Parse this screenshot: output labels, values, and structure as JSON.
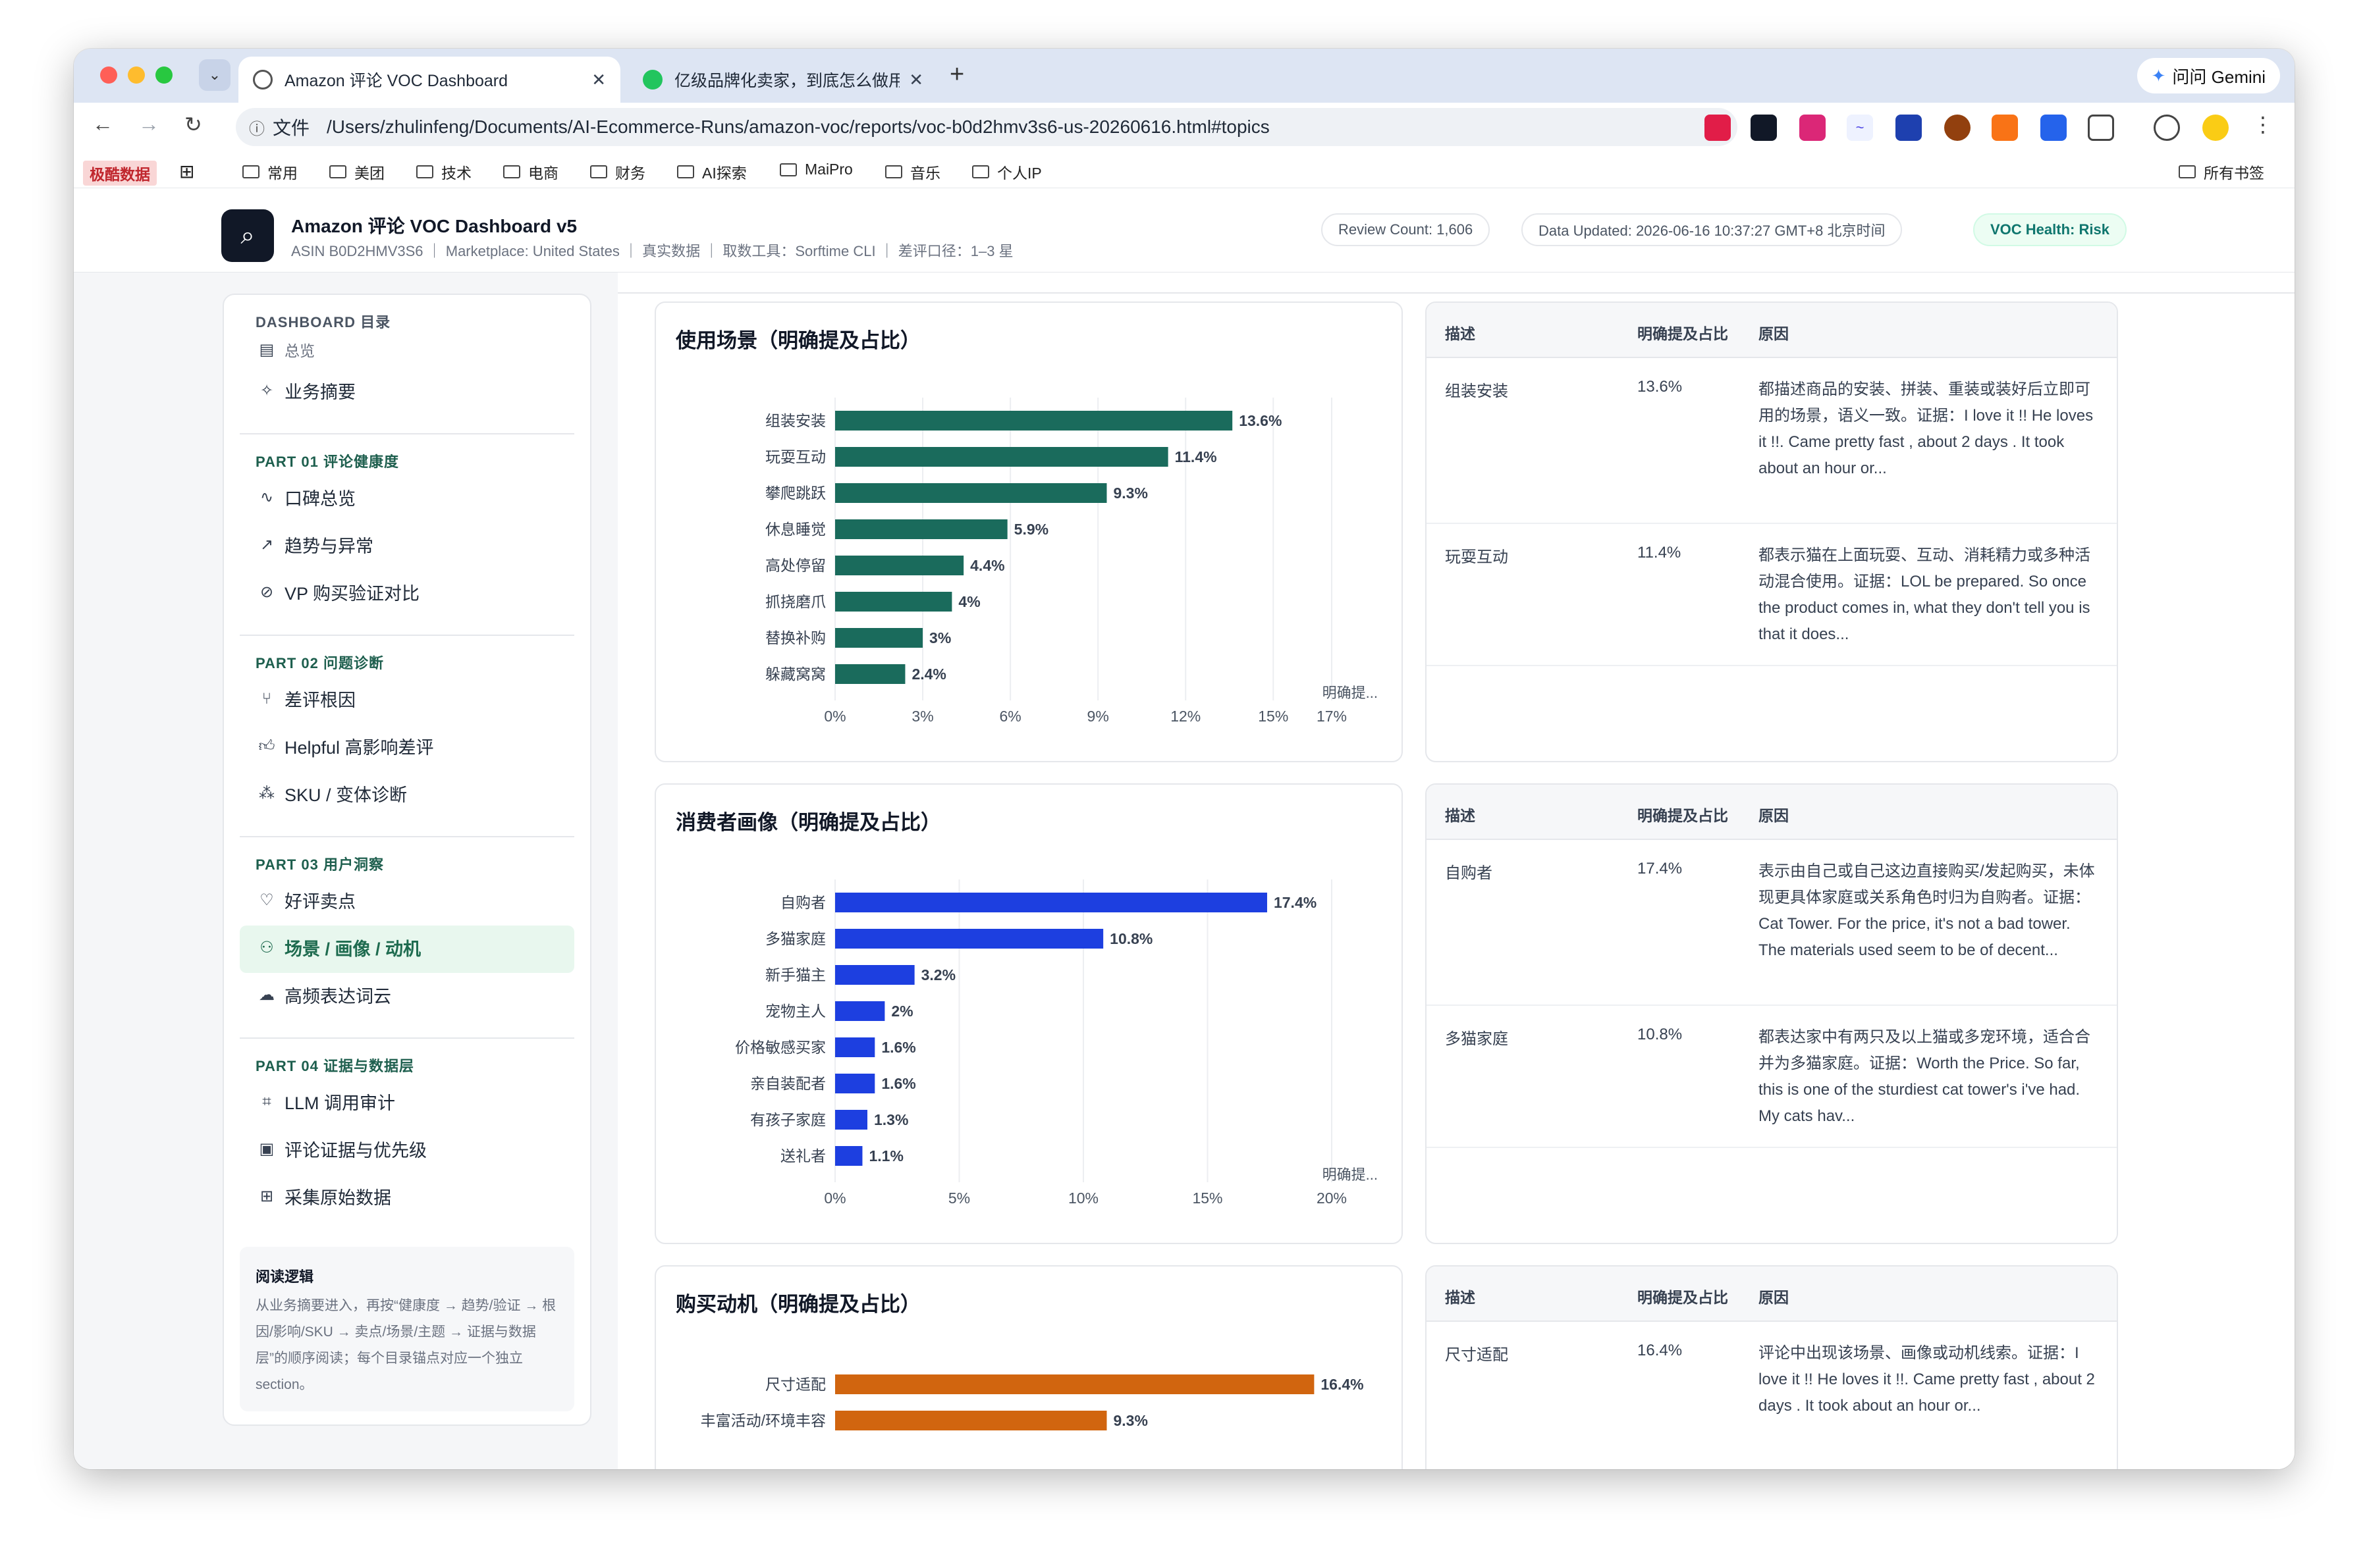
{
  "browser": {
    "tabs": [
      {
        "title": "Amazon 评论 VOC Dashboard",
        "active": true
      },
      {
        "title": "亿级品牌化卖家，到底怎么做用",
        "active": false
      }
    ],
    "gemini_label": "问问 Gemini",
    "url_label": "文件",
    "url": "/Users/zhulinfeng/Documents/AI-Ecommerce-Runs/amazon-voc/reports/voc-b0d2hmv3s6-us-20260616.html#topics",
    "bookmarks": [
      "极酷数据",
      "常用",
      "美团",
      "技术",
      "电商",
      "财务",
      "AI探索",
      "MaiPro",
      "音乐",
      "个人IP"
    ],
    "all_bookmarks": "所有书签"
  },
  "header": {
    "title": "Amazon 评论 VOC Dashboard v5",
    "subtitle": "ASIN B0D2HMV3S6 ｜ Marketplace: United States ｜ 真实数据 ｜ 取数工具：Sorftime CLI ｜ 差评口径：1–3 星",
    "review_count": "Review Count: 1,606",
    "data_updated": "Data Updated: 2026-06-16 10:37:27 GMT+8 北京时间",
    "health": "VOC Health: Risk"
  },
  "sidebar": {
    "top_title": "DASHBOARD 目录",
    "overview": "总览",
    "summary": "业务摘要",
    "parts": [
      {
        "title": "PART 01 评论健康度",
        "items": [
          "口碑总览",
          "趋势与异常",
          "VP 购买验证对比"
        ]
      },
      {
        "title": "PART 02 问题诊断",
        "items": [
          "差评根因",
          "Helpful 高影响差评",
          "SKU / 变体诊断"
        ]
      },
      {
        "title": "PART 03 用户洞察",
        "items": [
          "好评卖点",
          "场景 / 画像 / 动机",
          "高频表达词云"
        ]
      },
      {
        "title": "PART 04 证据与数据层",
        "items": [
          "LLM 调用审计",
          "评论证据与优先级",
          "采集原始数据"
        ]
      }
    ],
    "active_item": "场景 / 画像 / 动机",
    "note_title": "阅读逻辑",
    "note_body": "从业务摘要进入，再按“健康度 → 趋势/验证 → 根因/影响/SKU → 卖点/场景/主题 → 证据与数据层”的顺序阅读；每个目录锚点对应一个独立 section。"
  },
  "table_headers": {
    "col1": "描述",
    "col2": "明确提及占比",
    "col3": "原因"
  },
  "sections": [
    {
      "title": "使用场景（明确提及占比）",
      "color": "#1a6b5c",
      "axis_ticks": [
        "0%",
        "3%",
        "6%",
        "9%",
        "12%",
        "15%",
        "17%"
      ],
      "axis_caption": "明确提...",
      "rows": [
        {
          "desc": "组装安装",
          "pct": "13.6%",
          "reason": "都描述商品的安装、拼装、重装或装好后立即可用的场景，语义一致。证据：I love it !! He loves it !!. Came pretty fast , about 2 days . It took about an hour or..."
        },
        {
          "desc": "玩耍互动",
          "pct": "11.4%",
          "reason": "都表示猫在上面玩耍、互动、消耗精力或多种活动混合使用。证据：LOL be prepared. So once the product comes in, what they don't tell you is that it does..."
        }
      ]
    },
    {
      "title": "消费者画像（明确提及占比）",
      "color": "#1d3fe0",
      "axis_ticks": [
        "0%",
        "5%",
        "10%",
        "15%",
        "20%"
      ],
      "axis_caption": "明确提...",
      "rows": [
        {
          "desc": "自购者",
          "pct": "17.4%",
          "reason": "表示由自己或自己这边直接购买/发起购买，未体现更具体家庭或关系角色时归为自购者。证据：Cat Tower. For the price, it's not a bad tower. The materials used seem to be of decent..."
        },
        {
          "desc": "多猫家庭",
          "pct": "10.8%",
          "reason": "都表达家中有两只及以上猫或多宠环境，适合合并为多猫家庭。证据：Worth the Price. So far, this is one of the sturdiest cat tower's i've had. My cats hav..."
        }
      ]
    },
    {
      "title": "购买动机（明确提及占比）",
      "color": "#d1650f",
      "axis_ticks": [],
      "axis_caption": "",
      "rows": [
        {
          "desc": "尺寸适配",
          "pct": "16.4%",
          "reason": "评论中出现该场景、画像或动机线索。证据：I love it !! He loves it !!. Came pretty fast , about 2 days . It took about an hour or..."
        }
      ]
    }
  ],
  "chart_data": [
    {
      "type": "bar",
      "title": "使用场景（明确提及占比）",
      "categories": [
        "组装安装",
        "玩耍互动",
        "攀爬跳跃",
        "休息睡觉",
        "高处停留",
        "抓挠磨爪",
        "替换补购",
        "躲藏窝窝"
      ],
      "values": [
        13.6,
        11.4,
        9.3,
        5.9,
        4.4,
        4,
        3,
        2.4
      ],
      "labels": [
        "13.6%",
        "11.4%",
        "9.3%",
        "5.9%",
        "4.4%",
        "4%",
        "3%",
        "2.4%"
      ],
      "xlim": [
        0,
        17
      ],
      "xlabel": "明确提..."
    },
    {
      "type": "bar",
      "title": "消费者画像（明确提及占比）",
      "categories": [
        "自购者",
        "多猫家庭",
        "新手猫主",
        "宠物主人",
        "价格敏感买家",
        "亲自装配者",
        "有孩子家庭",
        "送礼者"
      ],
      "values": [
        17.4,
        10.8,
        3.2,
        2,
        1.6,
        1.6,
        1.3,
        1.1
      ],
      "labels": [
        "17.4%",
        "10.8%",
        "3.2%",
        "2%",
        "1.6%",
        "1.6%",
        "1.3%",
        "1.1%"
      ],
      "xlim": [
        0,
        20
      ],
      "xlabel": "明确提..."
    },
    {
      "type": "bar",
      "title": "购买动机（明确提及占比）",
      "categories": [
        "尺寸适配",
        "丰富活动/环境丰容"
      ],
      "values": [
        16.4,
        9.3
      ],
      "labels": [
        "16.4%",
        "9.3%"
      ],
      "xlim": [
        0,
        17
      ]
    }
  ]
}
